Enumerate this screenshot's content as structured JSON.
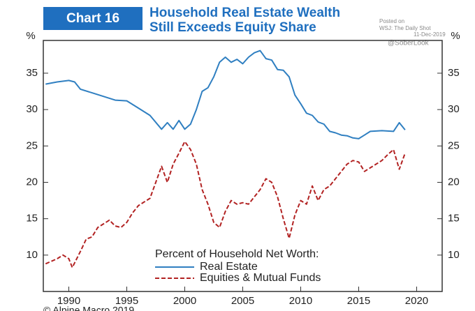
{
  "chart_data": {
    "type": "line",
    "badge": "Chart 16",
    "title": [
      "Household Real Estate Wealth",
      "Still Exceeds Equity Share"
    ],
    "watermark": [
      "Posted on",
      "WSJ: The Daily Shot",
      "11-Dec-2019",
      "@SoberLook"
    ],
    "y_unit": "%",
    "legend_title": "Percent of Household Net Worth:",
    "source": "© Alpine Macro 2019",
    "xlim": [
      1987.8,
      2022.2
    ],
    "xticks": [
      1990,
      1995,
      2000,
      2005,
      2010,
      2015,
      2020
    ],
    "ylim": [
      5,
      39.5
    ],
    "yticks": [
      10,
      15,
      20,
      25,
      30,
      35
    ],
    "series": [
      {
        "name": "Real Estate",
        "color": "#2f7fc1",
        "dash": false,
        "x": [
          1988,
          1989,
          1990,
          1990.5,
          1991,
          1992,
          1993,
          1994,
          1995,
          1996,
          1997,
          1998,
          1998.5,
          1999,
          1999.5,
          2000,
          2000.5,
          2001,
          2001.5,
          2002,
          2002.5,
          2003,
          2003.5,
          2004,
          2004.5,
          2005,
          2005.5,
          2006,
          2006.5,
          2007,
          2007.5,
          2008,
          2008.5,
          2009,
          2009.5,
          2010,
          2010.5,
          2011,
          2011.5,
          2012,
          2012.5,
          2013,
          2013.5,
          2014,
          2014.5,
          2015,
          2015.5,
          2016,
          2017,
          2018,
          2018.5,
          2019
        ],
        "values": [
          33.5,
          33.8,
          34.0,
          33.8,
          32.8,
          32.3,
          31.8,
          31.3,
          31.2,
          30.2,
          29.2,
          27.3,
          28.2,
          27.3,
          28.5,
          27.3,
          28.0,
          30.0,
          32.5,
          33.0,
          34.5,
          36.5,
          37.2,
          36.5,
          36.9,
          36.3,
          37.2,
          37.8,
          38.1,
          37.0,
          36.8,
          35.5,
          35.4,
          34.5,
          32.0,
          30.8,
          29.5,
          29.2,
          28.3,
          28.0,
          27.0,
          26.8,
          26.5,
          26.4,
          26.1,
          26.0,
          26.5,
          27.0,
          27.1,
          27.0,
          28.2,
          27.2
        ]
      },
      {
        "name": "Equities & Mutual Funds",
        "color": "#b22222",
        "dash": true,
        "x": [
          1988,
          1989,
          1989.5,
          1990,
          1990.3,
          1991,
          1991.5,
          1992,
          1992.5,
          1993,
          1993.5,
          1994,
          1994.5,
          1995,
          1995.5,
          1996,
          1997,
          1997.5,
          1998,
          1998.5,
          1999,
          1999.5,
          2000,
          2000.5,
          2001,
          2001.5,
          2002,
          2002.5,
          2003,
          2003.5,
          2004,
          2004.5,
          2005,
          2005.5,
          2006,
          2006.5,
          2007,
          2007.5,
          2008,
          2008.5,
          2009,
          2009.5,
          2010,
          2010.5,
          2011,
          2011.5,
          2012,
          2012.5,
          2013,
          2013.5,
          2014,
          2014.5,
          2015,
          2015.5,
          2016,
          2017,
          2017.5,
          2018,
          2018.5,
          2019
        ],
        "values": [
          8.8,
          9.5,
          10.0,
          9.5,
          8.3,
          10.5,
          12.2,
          12.5,
          13.8,
          14.3,
          14.8,
          14.0,
          13.8,
          14.5,
          15.8,
          16.8,
          17.8,
          20.0,
          22.2,
          20.0,
          22.5,
          24.0,
          25.6,
          24.5,
          22.5,
          19.0,
          17.0,
          14.5,
          13.8,
          16.0,
          17.5,
          17.0,
          17.2,
          17.0,
          18.0,
          19.0,
          20.5,
          20.0,
          18.0,
          15.0,
          12.3,
          15.5,
          17.5,
          17.0,
          19.5,
          17.5,
          19.0,
          19.5,
          20.5,
          21.5,
          22.5,
          23.0,
          22.8,
          21.5,
          22.0,
          23.0,
          23.8,
          24.5,
          21.8,
          24.0
        ]
      }
    ]
  }
}
